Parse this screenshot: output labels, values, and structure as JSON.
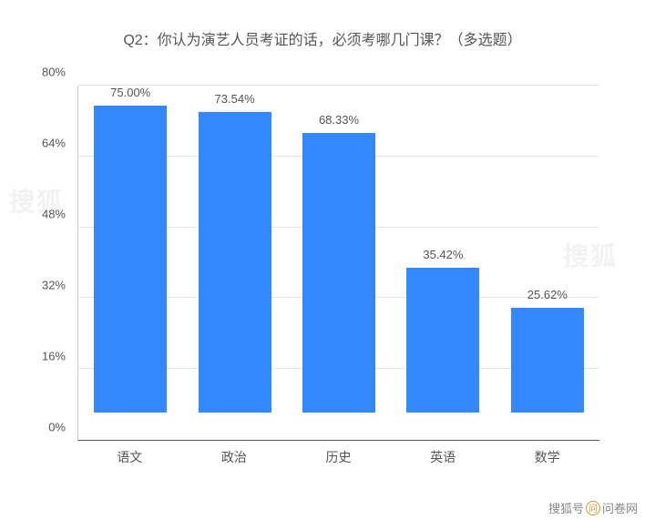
{
  "chart": {
    "type": "bar",
    "title": "Q2：你认为演艺人员考证的话，必须考哪几门课？（多选题）",
    "title_fontsize": 16,
    "title_color": "#555555",
    "categories": [
      "语文",
      "政治",
      "历史",
      "英语",
      "数学"
    ],
    "values": [
      75.0,
      73.54,
      68.33,
      35.42,
      25.62
    ],
    "value_labels": [
      "75.00%",
      "73.54%",
      "68.33%",
      "35.42%",
      "25.62%"
    ],
    "bar_color": "#3388ff",
    "bar_width_pct": 70,
    "y_axis": {
      "min": 0,
      "max": 80,
      "ticks": [
        0,
        16,
        32,
        48,
        64,
        80
      ],
      "tick_labels": [
        "0%",
        "16%",
        "32%",
        "48%",
        "64%",
        "80%"
      ]
    },
    "grid_color": "#e5e5e5",
    "axis_color": "#555555",
    "label_fontsize": 13,
    "label_color": "#555555",
    "background_color": "#ffffff"
  },
  "watermark": {
    "text_left": "搜狐号",
    "text_right": "问卷网",
    "faint_overlay": "搜狐"
  }
}
